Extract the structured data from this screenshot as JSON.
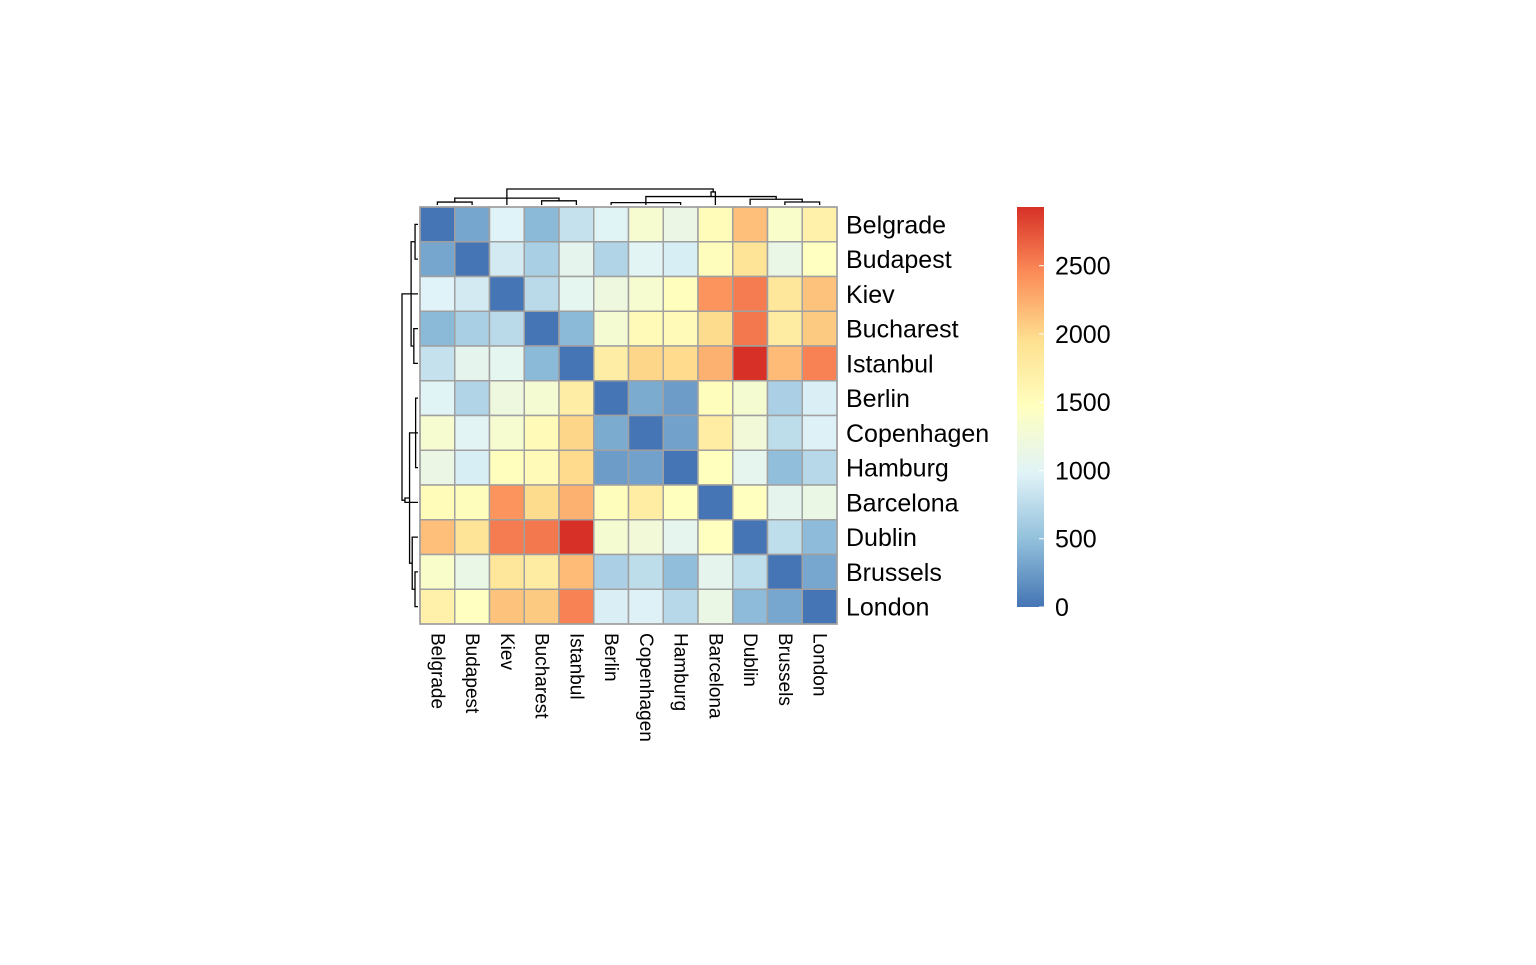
{
  "chart_data": {
    "type": "heatmap",
    "title": "",
    "rows": [
      "Belgrade",
      "Budapest",
      "Kiev",
      "Bucharest",
      "Istanbul",
      "Berlin",
      "Copenhagen",
      "Hamburg",
      "Barcelona",
      "Dublin",
      "Brussels",
      "London"
    ],
    "columns": [
      "Belgrade",
      "Budapest",
      "Kiev",
      "Bucharest",
      "Istanbul",
      "Berlin",
      "Copenhagen",
      "Hamburg",
      "Barcelona",
      "Dublin",
      "Brussels",
      "London"
    ],
    "values": [
      [
        0,
        316,
        976,
        447,
        809,
        999,
        1326,
        1147,
        1528,
        2145,
        1372,
        1688
      ],
      [
        316,
        0,
        894,
        639,
        1062,
        690,
        1010,
        927,
        1497,
        1887,
        1134,
        1452
      ],
      [
        976,
        894,
        0,
        744,
        1048,
        1197,
        1326,
        1485,
        2401,
        2529,
        1839,
        2130
      ],
      [
        447,
        639,
        744,
        0,
        447,
        1293,
        1538,
        1550,
        1976,
        2553,
        1767,
        2082
      ],
      [
        809,
        1062,
        1048,
        447,
        0,
        1738,
        2010,
        1982,
        2230,
        2930,
        2173,
        2499
      ],
      [
        999,
        690,
        1197,
        1293,
        1738,
        0,
        354,
        255,
        1497,
        1315,
        651,
        932
      ],
      [
        1326,
        1010,
        1326,
        1538,
        2010,
        354,
        0,
        289,
        1755,
        1238,
        766,
        956
      ],
      [
        1147,
        927,
        1485,
        1550,
        1982,
        255,
        289,
        0,
        1471,
        1074,
        489,
        720
      ],
      [
        1528,
        1497,
        2401,
        1976,
        2230,
        1497,
        1755,
        1471,
        0,
        1469,
        1062,
        1137
      ],
      [
        2145,
        1887,
        2529,
        2553,
        2930,
        1315,
        1238,
        1074,
        1469,
        0,
        775,
        464
      ],
      [
        1372,
        1134,
        1839,
        1767,
        2173,
        651,
        766,
        489,
        1062,
        775,
        0,
        321
      ],
      [
        1688,
        1452,
        2130,
        2082,
        2499,
        932,
        956,
        720,
        1137,
        464,
        321,
        0
      ]
    ],
    "color_scale": {
      "min": 0,
      "max": 2930,
      "stops": [
        "#4575b4",
        "#91bfdb",
        "#e0f3f8",
        "#ffffbf",
        "#fee090",
        "#fc8d59",
        "#d73027"
      ]
    },
    "legend": {
      "ticks": [
        0,
        500,
        1000,
        1500,
        2000,
        2500
      ],
      "tick_labels": [
        "0",
        "500",
        "1000",
        "1500",
        "2000",
        "2500"
      ],
      "placement": "right"
    },
    "cell_border_color": "#a0a0a0",
    "dendrograms": [
      "top",
      "left"
    ]
  }
}
